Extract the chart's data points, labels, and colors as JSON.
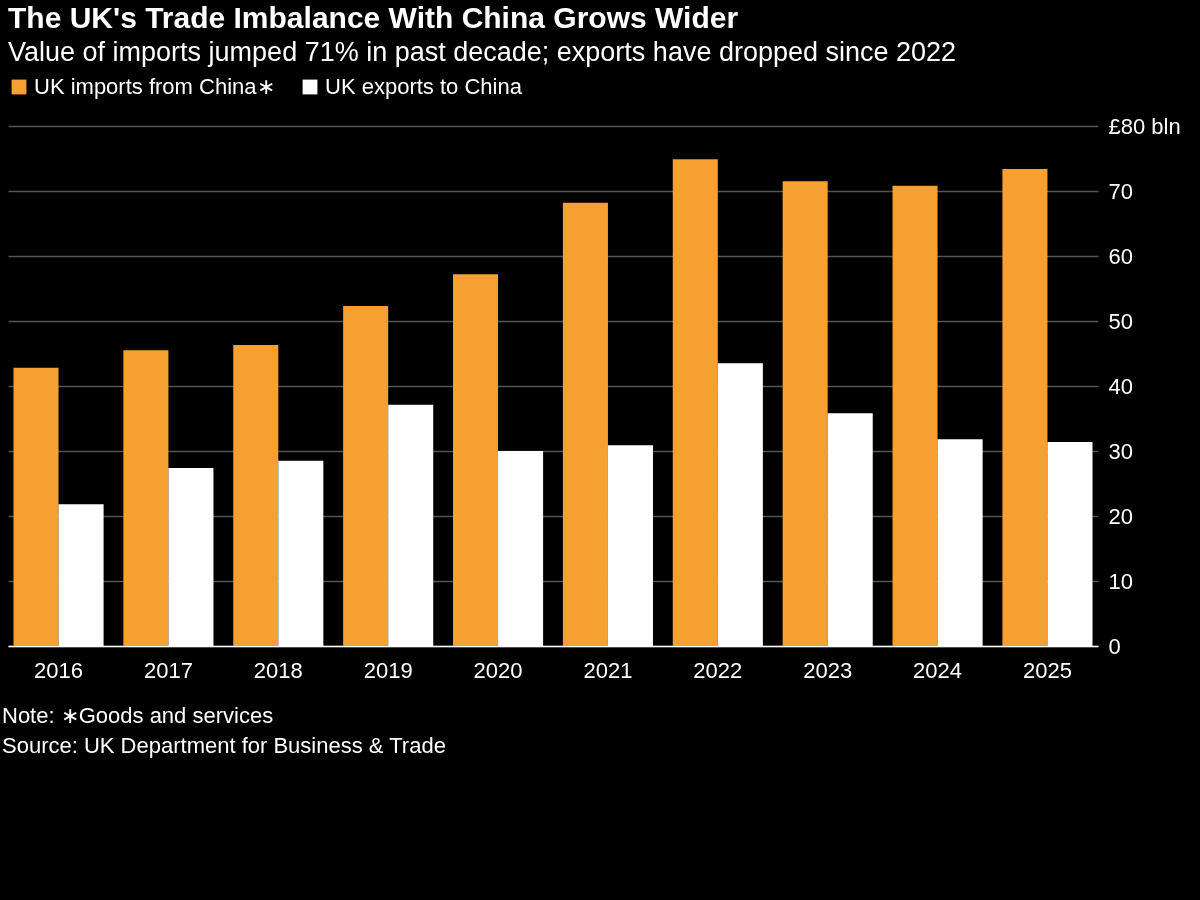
{
  "chart_data": {
    "type": "bar",
    "title": "The UK's Trade Imbalance With China Grows Wider",
    "subtitle": "Value of imports jumped 71% in past decade; exports have dropped since 2022",
    "categories": [
      "2016",
      "2017",
      "2018",
      "2019",
      "2020",
      "2021",
      "2022",
      "2023",
      "2024",
      "2025"
    ],
    "series": [
      {
        "name": "UK imports from China∗",
        "color": "#f5a030",
        "values": [
          42.8,
          45.5,
          46.3,
          52.3,
          57.2,
          68.2,
          74.9,
          71.5,
          70.8,
          73.4
        ]
      },
      {
        "name": "UK exports to China",
        "color": "#ffffff",
        "values": [
          21.8,
          27.4,
          28.5,
          37.1,
          30.0,
          30.9,
          43.5,
          35.8,
          31.8,
          31.4
        ]
      }
    ],
    "ylim": [
      0,
      80
    ],
    "yticks": [
      0,
      10,
      20,
      30,
      40,
      50,
      60,
      70,
      {
        "value": 80,
        "label": "£80 bln"
      }
    ],
    "grid": "y",
    "legend": "top left",
    "annotations": [
      "Note: ∗Goods and services",
      "Source: UK Department for Business & Trade"
    ]
  }
}
